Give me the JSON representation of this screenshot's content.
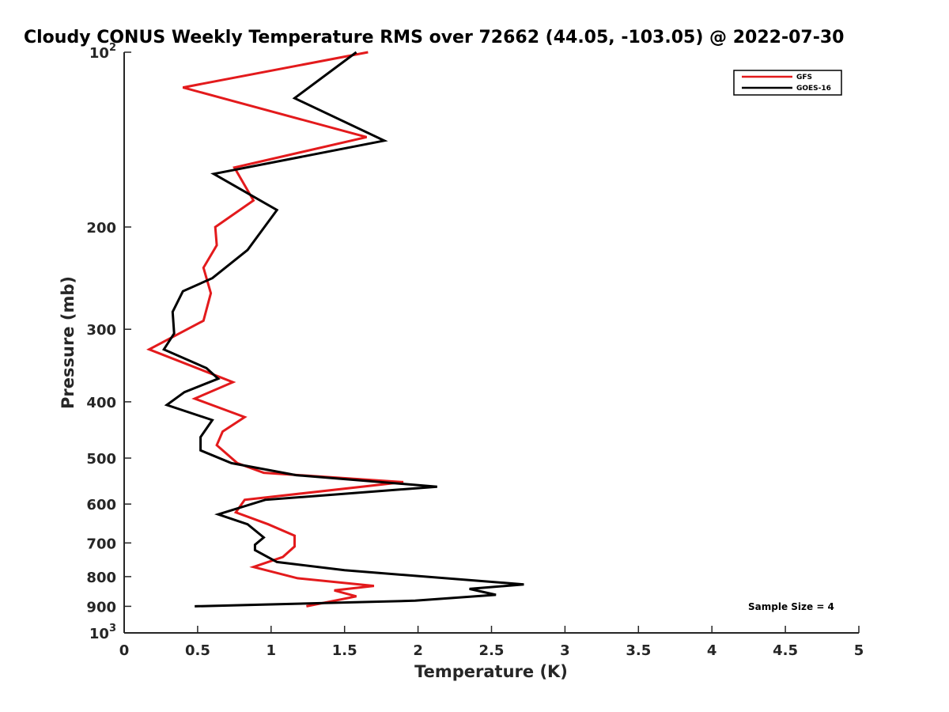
{
  "chart_data": {
    "type": "line",
    "title": "Cloudy CONUS Weekly Temperature RMS over 72662 (44.05, -103.05) @ 2022-07-30",
    "xlabel": "Temperature (K)",
    "ylabel": "Pressure (mb)",
    "xlim": [
      0,
      5
    ],
    "ylim": [
      100,
      1000
    ],
    "y_scale": "log",
    "y_reversed": true,
    "grid": false,
    "legend_position": "top-right",
    "x_ticks": [
      {
        "value": 0,
        "label": "0"
      },
      {
        "value": 0.5,
        "label": "0.5"
      },
      {
        "value": 1,
        "label": "1"
      },
      {
        "value": 1.5,
        "label": "1.5"
      },
      {
        "value": 2,
        "label": "2"
      },
      {
        "value": 2.5,
        "label": "2.5"
      },
      {
        "value": 3,
        "label": "3"
      },
      {
        "value": 3.5,
        "label": "3.5"
      },
      {
        "value": 4,
        "label": "4"
      },
      {
        "value": 4.5,
        "label": "4.5"
      },
      {
        "value": 5,
        "label": "5"
      }
    ],
    "y_ticks": [
      {
        "value": 100,
        "label": "10",
        "exp": "2"
      },
      {
        "value": 200,
        "label": "200"
      },
      {
        "value": 300,
        "label": "300"
      },
      {
        "value": 400,
        "label": "400"
      },
      {
        "value": 500,
        "label": "500"
      },
      {
        "value": 600,
        "label": "600"
      },
      {
        "value": 700,
        "label": "700"
      },
      {
        "value": 800,
        "label": "800"
      },
      {
        "value": 900,
        "label": "900"
      },
      {
        "value": 1000,
        "label": "10",
        "exp": "3"
      }
    ],
    "series": [
      {
        "name": "GFS",
        "color": "#e31a1c",
        "points": [
          [
            1.66,
            100
          ],
          [
            0.4,
            115
          ],
          [
            1.65,
            140
          ],
          [
            0.75,
            158
          ],
          [
            0.88,
            180
          ],
          [
            0.62,
            200
          ],
          [
            0.63,
            215
          ],
          [
            0.54,
            235
          ],
          [
            0.59,
            260
          ],
          [
            0.54,
            290
          ],
          [
            0.17,
            325
          ],
          [
            0.74,
            370
          ],
          [
            0.48,
            395
          ],
          [
            0.82,
            425
          ],
          [
            0.67,
            450
          ],
          [
            0.63,
            475
          ],
          [
            0.77,
            510
          ],
          [
            0.95,
            530
          ],
          [
            1.9,
            550
          ],
          [
            0.82,
            590
          ],
          [
            0.76,
            620
          ],
          [
            0.98,
            650
          ],
          [
            1.16,
            680
          ],
          [
            1.16,
            710
          ],
          [
            1.08,
            740
          ],
          [
            0.88,
            770
          ],
          [
            1.18,
            805
          ],
          [
            1.7,
            830
          ],
          [
            1.43,
            845
          ],
          [
            1.58,
            865
          ],
          [
            1.24,
            900
          ]
        ]
      },
      {
        "name": "GOES-16",
        "color": "#000000",
        "points": [
          [
            1.58,
            100
          ],
          [
            1.16,
            120
          ],
          [
            1.77,
            142
          ],
          [
            0.61,
            162
          ],
          [
            1.04,
            187
          ],
          [
            0.84,
            219
          ],
          [
            0.6,
            245
          ],
          [
            0.4,
            258
          ],
          [
            0.33,
            280
          ],
          [
            0.34,
            305
          ],
          [
            0.27,
            325
          ],
          [
            0.56,
            350
          ],
          [
            0.64,
            365
          ],
          [
            0.41,
            385
          ],
          [
            0.29,
            405
          ],
          [
            0.6,
            430
          ],
          [
            0.52,
            460
          ],
          [
            0.52,
            485
          ],
          [
            0.73,
            510
          ],
          [
            1.17,
            535
          ],
          [
            2.13,
            560
          ],
          [
            0.96,
            590
          ],
          [
            0.64,
            625
          ],
          [
            0.84,
            650
          ],
          [
            0.95,
            685
          ],
          [
            0.89,
            705
          ],
          [
            0.89,
            720
          ],
          [
            1.04,
            755
          ],
          [
            1.5,
            780
          ],
          [
            2.72,
            825
          ],
          [
            2.35,
            840
          ],
          [
            2.53,
            860
          ],
          [
            1.98,
            880
          ],
          [
            0.48,
            900
          ]
        ]
      }
    ],
    "annotation": "Sample Size = 4"
  }
}
